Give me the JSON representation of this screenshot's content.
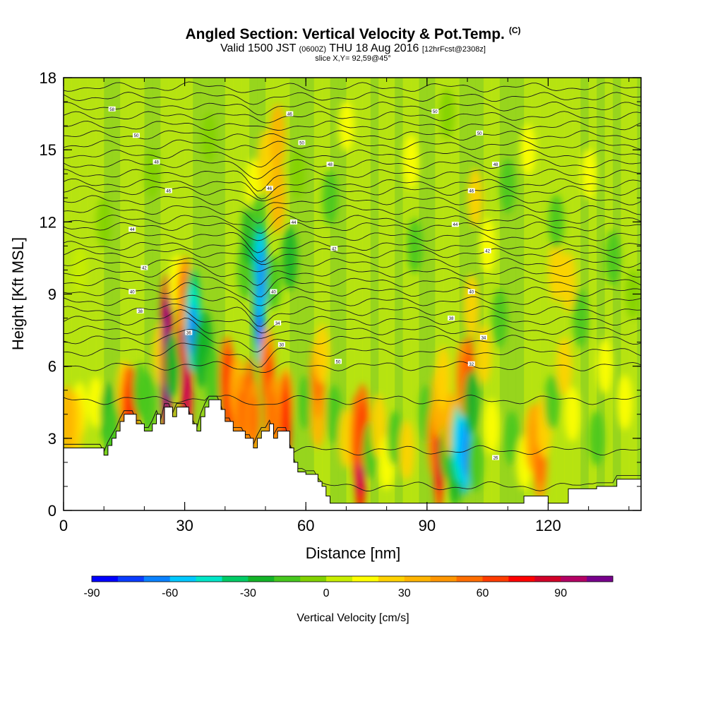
{
  "chart_data": {
    "type": "heatmap",
    "title": "Angled Section: Vertical Velocity & Pot.Temp.",
    "title_suffix": "(C)",
    "subtitle_main": "Valid 1500 JST",
    "subtitle_utc": "(0600Z)",
    "subtitle_date": "THU 18 Aug 2016",
    "subtitle_fcst": "[12hrFcst@2308z]",
    "slice_label": "slice X,Y= 92,59@45°",
    "xlabel": "Distance [nm]",
    "ylabel": "Height [Kft MSL]",
    "xlim": [
      0,
      143
    ],
    "ylim": [
      0,
      18
    ],
    "x_ticks": [
      "0",
      "30",
      "60",
      "90",
      "120"
    ],
    "y_ticks": [
      "0",
      "3",
      "6",
      "9",
      "12",
      "15",
      "18"
    ],
    "x_tick_values": [
      0,
      30,
      60,
      90,
      120
    ],
    "y_tick_values": [
      0,
      3,
      6,
      9,
      12,
      15,
      18
    ],
    "colorbar": {
      "label": "Vertical Velocity [cm/s]",
      "tick_labels": [
        "-90",
        "-60",
        "-30",
        "0",
        "30",
        "60",
        "90"
      ],
      "tick_values": [
        -90,
        -60,
        -30,
        0,
        30,
        60,
        90
      ],
      "range": [
        -90,
        110
      ],
      "colors": [
        "#0000ff",
        "#0a3cff",
        "#0a82ff",
        "#00c8ff",
        "#00e6c8",
        "#00cc66",
        "#14b428",
        "#46c81e",
        "#82d200",
        "#c8ee00",
        "#ffff00",
        "#ffd200",
        "#ffb400",
        "#ff9600",
        "#ff6e00",
        "#ff3c00",
        "#ff0000",
        "#d20028",
        "#b40064",
        "#78008c"
      ]
    },
    "terrain_kft": [
      [
        0,
        2.6
      ],
      [
        10,
        2.6
      ],
      [
        10,
        2.3
      ],
      [
        11,
        2.3
      ],
      [
        11,
        2.7
      ],
      [
        12,
        2.7
      ],
      [
        12,
        3.0
      ],
      [
        13,
        3.0
      ],
      [
        13,
        3.3
      ],
      [
        14,
        3.3
      ],
      [
        14,
        3.7
      ],
      [
        15,
        3.7
      ],
      [
        15,
        4.0
      ],
      [
        18,
        4.0
      ],
      [
        18,
        3.6
      ],
      [
        20,
        3.6
      ],
      [
        20,
        3.3
      ],
      [
        22,
        3.3
      ],
      [
        22,
        3.6
      ],
      [
        23,
        3.6
      ],
      [
        23,
        4.0
      ],
      [
        24,
        4.0
      ],
      [
        24,
        3.6
      ],
      [
        25,
        3.6
      ],
      [
        25,
        4.3
      ],
      [
        27,
        4.3
      ],
      [
        27,
        3.9
      ],
      [
        28,
        3.9
      ],
      [
        28,
        4.3
      ],
      [
        31,
        4.3
      ],
      [
        31,
        4.0
      ],
      [
        32,
        4.0
      ],
      [
        32,
        3.6
      ],
      [
        33,
        3.6
      ],
      [
        33,
        3.3
      ],
      [
        34,
        3.3
      ],
      [
        34,
        3.9
      ],
      [
        35,
        3.9
      ],
      [
        35,
        4.3
      ],
      [
        36,
        4.3
      ],
      [
        36,
        4.6
      ],
      [
        39,
        4.6
      ],
      [
        39,
        4.2
      ],
      [
        40,
        4.2
      ],
      [
        40,
        3.7
      ],
      [
        42,
        3.7
      ],
      [
        42,
        3.3
      ],
      [
        45,
        3.3
      ],
      [
        45,
        3.0
      ],
      [
        47,
        3.0
      ],
      [
        47,
        2.6
      ],
      [
        48,
        2.6
      ],
      [
        48,
        3.0
      ],
      [
        49,
        3.0
      ],
      [
        49,
        3.3
      ],
      [
        51,
        3.3
      ],
      [
        51,
        3.6
      ],
      [
        52,
        3.6
      ],
      [
        52,
        3.0
      ],
      [
        53,
        3.0
      ],
      [
        53,
        3.3
      ],
      [
        56,
        3.3
      ],
      [
        56,
        2.6
      ],
      [
        57,
        2.6
      ],
      [
        57,
        2.0
      ],
      [
        58,
        2.0
      ],
      [
        58,
        1.6
      ],
      [
        60,
        1.6
      ],
      [
        60,
        1.5
      ],
      [
        63,
        1.5
      ],
      [
        63,
        1.2
      ],
      [
        64,
        1.2
      ],
      [
        64,
        1.0
      ],
      [
        65,
        1.0
      ],
      [
        65,
        0.6
      ],
      [
        66,
        0.6
      ],
      [
        66,
        0.3
      ],
      [
        114,
        0.3
      ],
      [
        114,
        0.6
      ],
      [
        120,
        0.6
      ],
      [
        120,
        0.3
      ],
      [
        125,
        0.3
      ],
      [
        125,
        0.9
      ],
      [
        132,
        0.9
      ],
      [
        132,
        1.0
      ],
      [
        137,
        1.0
      ],
      [
        137,
        1.3
      ],
      [
        143,
        1.3
      ]
    ],
    "velocity_cells": [
      {
        "x": 4,
        "y": 4.2,
        "v": 15
      },
      {
        "x": 3,
        "y": 3.6,
        "v": 25
      },
      {
        "x": 1,
        "y": 3.8,
        "v": 30
      },
      {
        "x": 4,
        "y": 10.0,
        "v": 5
      },
      {
        "x": 8,
        "y": 4.5,
        "v": 10
      },
      {
        "x": 11,
        "y": 4.0,
        "v": -25
      },
      {
        "x": 12,
        "y": 3.3,
        "v": -20
      },
      {
        "x": 15,
        "y": 5.0,
        "v": 20
      },
      {
        "x": 16,
        "y": 4.3,
        "v": 50
      },
      {
        "x": 17,
        "y": 4.0,
        "v": 60
      },
      {
        "x": 19,
        "y": 5.0,
        "v": -15
      },
      {
        "x": 21,
        "y": 4.5,
        "v": -20
      },
      {
        "x": 24,
        "y": 6.5,
        "v": 25
      },
      {
        "x": 25.5,
        "y": 6.5,
        "v": 70
      },
      {
        "x": 25.5,
        "y": 5.5,
        "v": 95
      },
      {
        "x": 25.5,
        "y": 7.5,
        "v": 85
      },
      {
        "x": 27,
        "y": 6.0,
        "v": -25
      },
      {
        "x": 28,
        "y": 9.5,
        "v": 15
      },
      {
        "x": 29.5,
        "y": 8.0,
        "v": 65
      },
      {
        "x": 30.5,
        "y": 6.5,
        "v": 90
      },
      {
        "x": 30.5,
        "y": 5.0,
        "v": 75
      },
      {
        "x": 30,
        "y": 9.0,
        "v": 40
      },
      {
        "x": 32,
        "y": 8.5,
        "v": -40
      },
      {
        "x": 32,
        "y": 7.5,
        "v": -50
      },
      {
        "x": 34,
        "y": 6.5,
        "v": -30
      },
      {
        "x": 35,
        "y": 7.0,
        "v": -25
      },
      {
        "x": 37,
        "y": 5.5,
        "v": -20
      },
      {
        "x": 40.5,
        "y": 5.5,
        "v": 50
      },
      {
        "x": 41,
        "y": 4.8,
        "v": 60
      },
      {
        "x": 43,
        "y": 5.0,
        "v": 30
      },
      {
        "x": 44,
        "y": 4.0,
        "v": 45
      },
      {
        "x": 45,
        "y": 10.0,
        "v": -20
      },
      {
        "x": 46,
        "y": 11.5,
        "v": -25
      },
      {
        "x": 46,
        "y": 4.5,
        "v": 55
      },
      {
        "x": 47,
        "y": 3.8,
        "v": 45
      },
      {
        "x": 47,
        "y": 13.5,
        "v": 15
      },
      {
        "x": 48,
        "y": 12.0,
        "v": -15
      },
      {
        "x": 48.5,
        "y": 9.0,
        "v": -70
      },
      {
        "x": 48.5,
        "y": 8.0,
        "v": -60
      },
      {
        "x": 48.5,
        "y": 10.5,
        "v": -40
      },
      {
        "x": 49,
        "y": 9.8,
        "v": -55
      },
      {
        "x": 50.5,
        "y": 6.0,
        "v": 40
      },
      {
        "x": 50,
        "y": 14.5,
        "v": 25
      },
      {
        "x": 51,
        "y": 4.5,
        "v": 60
      },
      {
        "x": 52,
        "y": 4.0,
        "v": 45
      },
      {
        "x": 53,
        "y": 15.5,
        "v": 30
      },
      {
        "x": 53,
        "y": 13.0,
        "v": 35
      },
      {
        "x": 52,
        "y": 9.5,
        "v": -15
      },
      {
        "x": 55,
        "y": 4.5,
        "v": 35
      },
      {
        "x": 55,
        "y": 3.8,
        "v": 60
      },
      {
        "x": 56,
        "y": 10.5,
        "v": -25
      },
      {
        "x": 60,
        "y": 4.5,
        "v": -15
      },
      {
        "x": 58,
        "y": 14.0,
        "v": -10
      },
      {
        "x": 63,
        "y": 4.0,
        "v": 30
      },
      {
        "x": 63,
        "y": 5.5,
        "v": 45
      },
      {
        "x": 64,
        "y": 6.5,
        "v": 20
      },
      {
        "x": 66,
        "y": 13.0,
        "v": -15
      },
      {
        "x": 67,
        "y": 4.0,
        "v": -20
      },
      {
        "x": 70,
        "y": 3.0,
        "v": 20
      },
      {
        "x": 72.5,
        "y": 3.0,
        "v": 55
      },
      {
        "x": 73.5,
        "y": 2.0,
        "v": 75
      },
      {
        "x": 74,
        "y": 3.5,
        "v": 50
      },
      {
        "x": 76,
        "y": 2.5,
        "v": -20
      },
      {
        "x": 78,
        "y": 3.5,
        "v": 25
      },
      {
        "x": 80,
        "y": 2.0,
        "v": 15
      },
      {
        "x": 82,
        "y": 3.0,
        "v": -15
      },
      {
        "x": 85,
        "y": 2.5,
        "v": 20
      },
      {
        "x": 86,
        "y": 14.5,
        "v": 15
      },
      {
        "x": 87,
        "y": 11.0,
        "v": -15
      },
      {
        "x": 90,
        "y": 4.0,
        "v": -20
      },
      {
        "x": 92,
        "y": 3.0,
        "v": 45
      },
      {
        "x": 93,
        "y": 2.0,
        "v": 65
      },
      {
        "x": 93,
        "y": 4.5,
        "v": 35
      },
      {
        "x": 94,
        "y": 5.5,
        "v": 25
      },
      {
        "x": 95,
        "y": 2.5,
        "v": -20
      },
      {
        "x": 96,
        "y": 3.5,
        "v": 30
      },
      {
        "x": 97,
        "y": 1.5,
        "v": -25
      },
      {
        "x": 98,
        "y": 2.8,
        "v": -45
      },
      {
        "x": 99.5,
        "y": 2.5,
        "v": -55
      },
      {
        "x": 99,
        "y": 5.5,
        "v": 40
      },
      {
        "x": 100.5,
        "y": 5.5,
        "v": 55
      },
      {
        "x": 101,
        "y": 8.5,
        "v": 25
      },
      {
        "x": 101,
        "y": 4.5,
        "v": -25
      },
      {
        "x": 102,
        "y": 2.0,
        "v": -20
      },
      {
        "x": 102,
        "y": 13.0,
        "v": 20
      },
      {
        "x": 104,
        "y": 6.5,
        "v": 20
      },
      {
        "x": 105,
        "y": 11.0,
        "v": 15
      },
      {
        "x": 106,
        "y": 3.5,
        "v": 15
      },
      {
        "x": 108,
        "y": 8.0,
        "v": -20
      },
      {
        "x": 110,
        "y": 13.5,
        "v": -15
      },
      {
        "x": 111,
        "y": 3.0,
        "v": -15
      },
      {
        "x": 114,
        "y": 2.0,
        "v": 15
      },
      {
        "x": 116,
        "y": 3.0,
        "v": 30
      },
      {
        "x": 117.5,
        "y": 2.8,
        "v": 45
      },
      {
        "x": 118,
        "y": 2.0,
        "v": 40
      },
      {
        "x": 119,
        "y": 3.5,
        "v": 25
      },
      {
        "x": 121,
        "y": 4.5,
        "v": -15
      },
      {
        "x": 122,
        "y": 10.0,
        "v": 25
      },
      {
        "x": 122,
        "y": 12.0,
        "v": -15
      },
      {
        "x": 124,
        "y": 6.0,
        "v": 20
      },
      {
        "x": 125,
        "y": 9.5,
        "v": 20
      },
      {
        "x": 126,
        "y": 4.0,
        "v": 15
      },
      {
        "x": 128,
        "y": 8.0,
        "v": -20
      },
      {
        "x": 130,
        "y": 14.0,
        "v": 10
      },
      {
        "x": 132,
        "y": 3.0,
        "v": -15
      },
      {
        "x": 134,
        "y": 6.0,
        "v": 15
      },
      {
        "x": 136,
        "y": 10.5,
        "v": -15
      },
      {
        "x": 139,
        "y": 4.5,
        "v": 15
      },
      {
        "x": 141,
        "y": 9.0,
        "v": -10
      },
      {
        "x": 36,
        "y": 15.5,
        "v": -10
      },
      {
        "x": 22,
        "y": 14.0,
        "v": -10
      },
      {
        "x": 10,
        "y": 12.0,
        "v": -10
      },
      {
        "x": 70,
        "y": 16.0,
        "v": 10
      },
      {
        "x": 95,
        "y": 16.5,
        "v": -10
      },
      {
        "x": 115,
        "y": 15.0,
        "v": 10
      }
    ],
    "theta_contours": {
      "levels_kft": [
        1.0,
        2.5,
        4.6,
        6.0,
        6.6,
        7.1,
        7.5,
        7.9,
        8.3,
        8.7,
        9.1,
        9.5,
        9.9,
        10.3,
        10.7,
        11.0,
        11.4,
        11.8,
        12.1,
        12.5,
        12.9,
        13.3,
        13.6,
        14.0,
        14.4,
        14.8,
        15.2,
        15.6,
        16.0,
        16.4,
        16.8,
        17.2,
        17.6
      ]
    },
    "contour_labels": [
      {
        "text": "58",
        "x": 12,
        "y": 16.7
      },
      {
        "text": "50",
        "x": 18,
        "y": 15.6
      },
      {
        "text": "48",
        "x": 23,
        "y": 14.5
      },
      {
        "text": "46",
        "x": 26,
        "y": 13.3
      },
      {
        "text": "44",
        "x": 17,
        "y": 11.7
      },
      {
        "text": "42",
        "x": 20,
        "y": 10.1
      },
      {
        "text": "40",
        "x": 17,
        "y": 9.1
      },
      {
        "text": "38",
        "x": 19,
        "y": 8.3
      },
      {
        "text": "36",
        "x": 31,
        "y": 7.4
      },
      {
        "text": "34",
        "x": 53,
        "y": 7.8
      },
      {
        "text": "30",
        "x": 54,
        "y": 6.9
      },
      {
        "text": "50",
        "x": 68,
        "y": 6.2
      },
      {
        "text": "46",
        "x": 56,
        "y": 16.5
      },
      {
        "text": "50",
        "x": 59,
        "y": 15.3
      },
      {
        "text": "48",
        "x": 66,
        "y": 14.4
      },
      {
        "text": "46",
        "x": 51,
        "y": 13.4
      },
      {
        "text": "44",
        "x": 57,
        "y": 12.0
      },
      {
        "text": "42",
        "x": 67,
        "y": 10.9
      },
      {
        "text": "40",
        "x": 52,
        "y": 9.1
      },
      {
        "text": "50",
        "x": 92,
        "y": 16.6
      },
      {
        "text": "50",
        "x": 103,
        "y": 15.7
      },
      {
        "text": "48",
        "x": 107,
        "y": 14.4
      },
      {
        "text": "46",
        "x": 101,
        "y": 13.3
      },
      {
        "text": "44",
        "x": 97,
        "y": 11.9
      },
      {
        "text": "42",
        "x": 105,
        "y": 10.8
      },
      {
        "text": "40",
        "x": 101,
        "y": 9.1
      },
      {
        "text": "38",
        "x": 96,
        "y": 8.0
      },
      {
        "text": "34",
        "x": 104,
        "y": 7.2
      },
      {
        "text": "32",
        "x": 101,
        "y": 6.1
      },
      {
        "text": "26",
        "x": 107,
        "y": 2.2
      }
    ]
  }
}
